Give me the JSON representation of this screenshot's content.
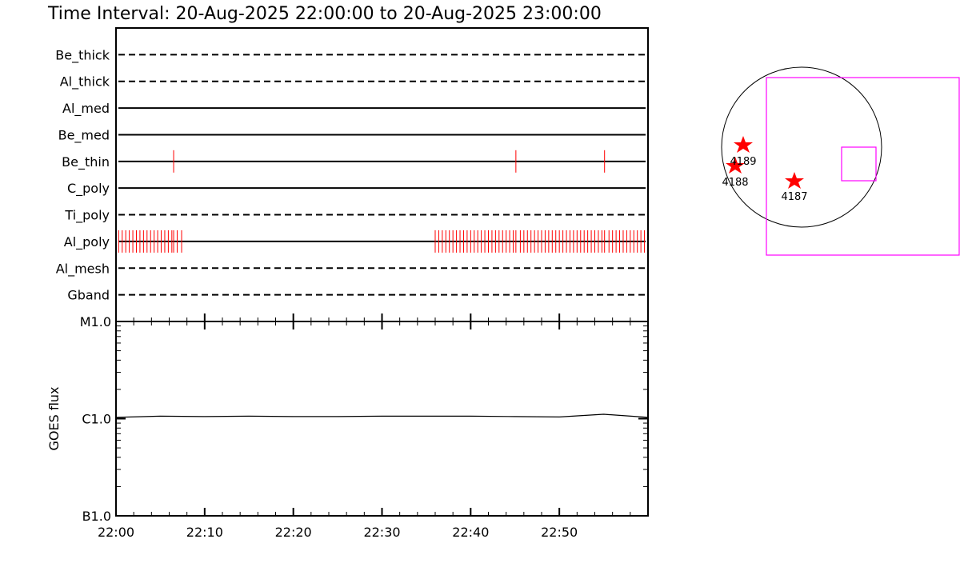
{
  "title": "Time Interval: 20-Aug-2025 22:00:00 to 20-Aug-2025 23:00:00",
  "chart_data": [
    {
      "type": "event",
      "categories": [
        "Be_thick",
        "Al_thick",
        "Al_med",
        "Be_med",
        "Be_thin",
        "C_poly",
        "Ti_poly",
        "Al_poly",
        "Al_mesh",
        "Gband"
      ],
      "line_styles": [
        "dashed",
        "dashed",
        "solid",
        "solid",
        "solid",
        "solid",
        "dashed",
        "solid",
        "dashed",
        "dashed"
      ],
      "color": "#ff0000",
      "xlim": [
        0,
        60
      ],
      "events": [
        [],
        [],
        [],
        [],
        [
          6.5,
          45.1,
          55.1
        ],
        [],
        [],
        [
          0.3,
          0.7,
          1.1,
          1.5,
          1.9,
          2.3,
          2.7,
          3.1,
          3.5,
          3.9,
          4.3,
          4.7,
          5.1,
          5.5,
          5.9,
          6.3,
          6.5,
          6.9,
          7.4,
          36.0,
          36.4,
          36.8,
          37.2,
          37.6,
          38.0,
          38.4,
          38.8,
          39.2,
          39.6,
          40.0,
          40.4,
          40.8,
          41.2,
          41.6,
          42.0,
          42.4,
          42.8,
          43.2,
          43.6,
          44.0,
          44.4,
          44.8,
          45.1,
          45.6,
          46.0,
          46.4,
          46.8,
          47.2,
          47.6,
          48.0,
          48.4,
          48.8,
          49.2,
          49.6,
          50.0,
          50.4,
          50.8,
          51.2,
          51.6,
          52.0,
          52.4,
          52.8,
          53.2,
          53.6,
          54.0,
          54.4,
          54.8,
          55.1,
          55.6,
          56.0,
          56.4,
          56.8,
          57.2,
          57.6,
          58.0,
          58.4,
          58.8,
          59.2,
          59.6
        ],
        [],
        []
      ]
    },
    {
      "type": "line",
      "ylabel": "GOES flux",
      "log_scale": true,
      "xlim": [
        0,
        60
      ],
      "ylim": [
        1e-07,
        1e-05
      ],
      "yticks": [
        {
          "value": 1e-07,
          "label": "B1.0"
        },
        {
          "value": 1e-06,
          "label": "C1.0"
        },
        {
          "value": 1e-05,
          "label": "M1.0"
        }
      ],
      "yminorticks": [
        2e-07,
        3e-07,
        4e-07,
        5e-07,
        6e-07,
        7e-07,
        8e-07,
        9e-07,
        2e-06,
        3e-06,
        4e-06,
        5e-06,
        6e-06,
        7e-06,
        8e-06,
        9e-06
      ],
      "xticks": [
        {
          "value": 0,
          "label": "22:00"
        },
        {
          "value": 10,
          "label": "22:10"
        },
        {
          "value": 20,
          "label": "22:20"
        },
        {
          "value": 30,
          "label": "22:30"
        },
        {
          "value": 40,
          "label": "22:40"
        },
        {
          "value": 50,
          "label": "22:50"
        }
      ],
      "xminorticks": [
        2,
        4,
        6,
        8,
        12,
        14,
        16,
        18,
        22,
        24,
        26,
        28,
        32,
        34,
        36,
        38,
        42,
        44,
        46,
        48,
        52,
        54,
        56,
        58
      ],
      "x": [
        0,
        5,
        10,
        15,
        20,
        25,
        30,
        35,
        40,
        45,
        50,
        55,
        60
      ],
      "values": [
        1.03e-06,
        1.06e-06,
        1.05e-06,
        1.06e-06,
        1.05e-06,
        1.05e-06,
        1.06e-06,
        1.06e-06,
        1.06e-06,
        1.05e-06,
        1.04e-06,
        1.11e-06,
        1.03e-06
      ],
      "color": "#000000"
    }
  ],
  "disk": {
    "regions": [
      "4189",
      "4188",
      "4187"
    ]
  }
}
